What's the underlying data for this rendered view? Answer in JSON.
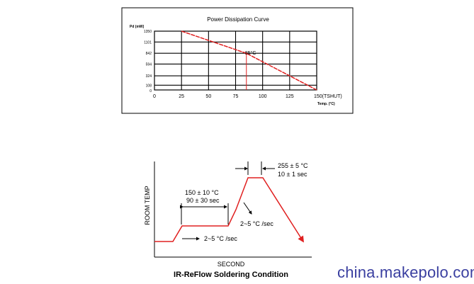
{
  "watermark": "china.makepolo.com",
  "chart_data": [
    {
      "type": "line",
      "title": "Power Dissipation Curve",
      "ylabel": "Pd (mW)",
      "xlabel": "Temp. (°C)",
      "x_ticks": [
        "0",
        "25",
        "50",
        "75",
        "100",
        "125",
        "150(TSHUT)"
      ],
      "y_ticks": [
        "1350",
        "1101",
        "842",
        "594",
        "324",
        "108",
        "0"
      ],
      "xlim": [
        0,
        150
      ],
      "ylim": [
        0,
        1350
      ],
      "grid": true,
      "series": [
        {
          "values": [
            [
              25,
              1350
            ],
            [
              85,
              842
            ],
            [
              150,
              0
            ]
          ]
        }
      ],
      "annotation": {
        "label": "85°C",
        "x": 85,
        "y": 842
      },
      "colors": {
        "series": "#e02020",
        "grid": "#000000",
        "frame": "#000000"
      }
    },
    {
      "type": "line",
      "title": "IR-ReFlow Soldering Condition",
      "xlabel": "SECOND",
      "ylabel": "ROOM TEMP",
      "series": [
        {
          "values": [
            [
              0,
              0
            ],
            [
              10,
              0
            ],
            [
              15,
              1
            ],
            [
              40,
              1
            ],
            [
              45,
              3
            ],
            [
              55,
              3
            ],
            [
              80,
              -1
            ]
          ]
        }
      ],
      "annotations": [
        {
          "text": "255 ± 5 °C",
          "target": "peak"
        },
        {
          "text": "10 ± 1 sec",
          "target": "peak"
        },
        {
          "text": "150 ± 10 °C",
          "target": "soak"
        },
        {
          "text": "90 ± 30 sec",
          "target": "soak"
        },
        {
          "text": "2~5 °C /sec",
          "target": "ramp-up"
        },
        {
          "text": "2~5 °C /sec",
          "target": "ramp-down"
        }
      ],
      "colors": {
        "series": "#e02020",
        "axis": "#000000"
      }
    }
  ]
}
